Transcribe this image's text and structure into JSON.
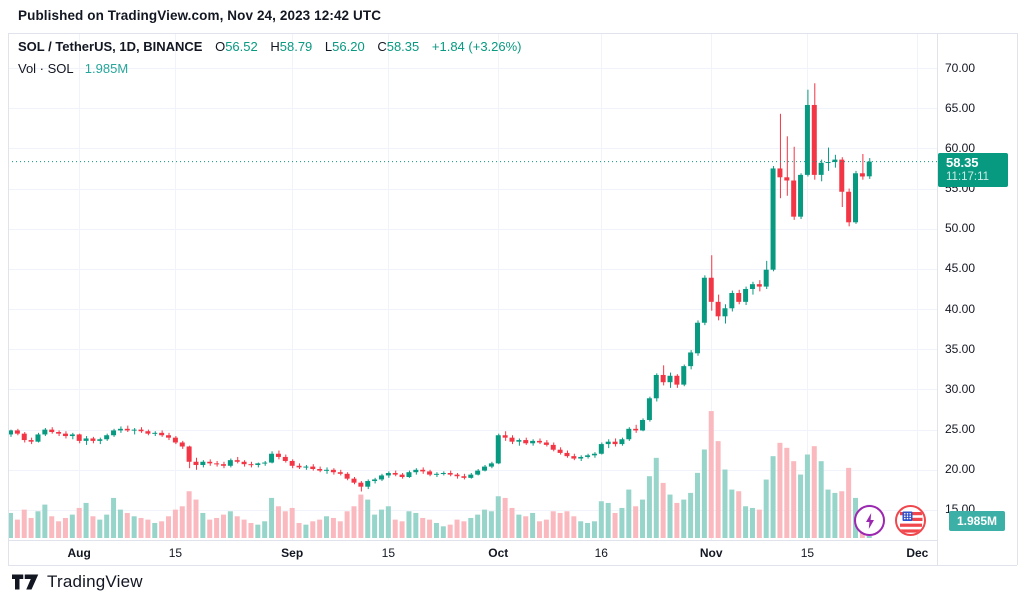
{
  "published": {
    "text": "Published on TradingView.com, Nov 24, 2023 12:42 UTC"
  },
  "legend": {
    "symbol": "SOL / TetherUS, 1D, BINANCE",
    "ohlc": [
      {
        "label": "O",
        "value": "56.52"
      },
      {
        "label": "H",
        "value": "58.79"
      },
      {
        "label": "L",
        "value": "56.20"
      },
      {
        "label": "C",
        "value": "58.35"
      }
    ],
    "change": "+1.84 (+3.26%)",
    "volume_label": "Vol · SOL",
    "volume_value": "1.985M"
  },
  "price_badge": {
    "price": "58.35",
    "countdown": "11:17:11"
  },
  "volume_badge": {
    "value": "1.985M"
  },
  "footer": {
    "logo_text": "TradingView"
  },
  "floating_icons": [
    {
      "name": "lightning-idea"
    },
    {
      "name": "us-flag"
    }
  ],
  "colors": {
    "up": "#089981",
    "down": "#f23645",
    "volume_up": "#97d4ca",
    "volume_down": "#fab9be",
    "grid": "#f0f3fa",
    "border": "#e0e3eb",
    "text": "#131722",
    "price_line": "#089981",
    "price_badge_bg": "#089981",
    "volume_badge_bg": "#3cb0a6",
    "lightning_purple": "#9c27b0",
    "flag_red": "#f0474d",
    "flag_blue": "#3050c8"
  },
  "chart_data": {
    "type": "candlestick",
    "title": "SOL / TetherUS, 1D, BINANCE",
    "interval": "1D",
    "exchange": "BINANCE",
    "legend_position": "top-left",
    "grid": true,
    "ylim": [
      12.5,
      71
    ],
    "y_ticks": [
      "70.00",
      "65.00",
      "60.00",
      "55.00",
      "50.00",
      "45.00",
      "40.00",
      "35.00",
      "30.00",
      "25.00",
      "20.00",
      "15.00"
    ],
    "x_ticks": [
      {
        "label": "Aug",
        "day_index": 10,
        "month": true
      },
      {
        "label": "15",
        "day_index": 24,
        "month": false
      },
      {
        "label": "Sep",
        "day_index": 41,
        "month": true
      },
      {
        "label": "15",
        "day_index": 55,
        "month": false
      },
      {
        "label": "Oct",
        "day_index": 71,
        "month": true
      },
      {
        "label": "16",
        "day_index": 86,
        "month": false
      },
      {
        "label": "Nov",
        "day_index": 102,
        "month": true
      },
      {
        "label": "15",
        "day_index": 116,
        "month": false
      },
      {
        "label": "Dec",
        "day_index": 132,
        "month": true
      }
    ],
    "last": {
      "price": 58.35,
      "countdown": "11:17:11",
      "volume": "1.985M"
    },
    "columns": [
      "date",
      "open",
      "high",
      "low",
      "close",
      "volume_millions"
    ],
    "candles": [
      [
        "Jul 22",
        24.4,
        25.0,
        24.1,
        24.9,
        1.5
      ],
      [
        "Jul 23",
        24.9,
        25.1,
        24.3,
        24.5,
        1.1
      ],
      [
        "Jul 24",
        24.5,
        24.7,
        23.4,
        23.7,
        1.7
      ],
      [
        "Jul 25",
        23.7,
        24.0,
        23.2,
        23.5,
        1.2
      ],
      [
        "Jul 26",
        23.5,
        24.6,
        23.4,
        24.4,
        1.6
      ],
      [
        "Jul 27",
        24.4,
        25.2,
        24.2,
        25.0,
        2.0
      ],
      [
        "Jul 28",
        25.0,
        25.3,
        24.5,
        24.7,
        1.3
      ],
      [
        "Jul 29",
        24.7,
        24.9,
        24.2,
        24.5,
        1.0
      ],
      [
        "Jul 30",
        24.5,
        24.8,
        23.9,
        24.2,
        1.2
      ],
      [
        "Jul 31",
        24.2,
        24.6,
        23.8,
        24.4,
        1.4
      ],
      [
        "Aug 1",
        24.4,
        24.5,
        23.3,
        23.6,
        1.8
      ],
      [
        "Aug 2",
        23.6,
        24.2,
        23.1,
        23.9,
        2.1
      ],
      [
        "Aug 3",
        23.9,
        24.1,
        23.3,
        23.6,
        1.3
      ],
      [
        "Aug 4",
        23.6,
        24.0,
        23.2,
        23.8,
        1.1
      ],
      [
        "Aug 5",
        23.8,
        24.5,
        23.6,
        24.3,
        1.4
      ],
      [
        "Aug 6",
        24.3,
        25.1,
        24.1,
        24.9,
        2.4
      ],
      [
        "Aug 7",
        24.9,
        25.4,
        24.6,
        25.1,
        1.7
      ],
      [
        "Aug 8",
        25.1,
        25.5,
        24.7,
        24.9,
        1.5
      ],
      [
        "Aug 9",
        24.9,
        25.2,
        24.4,
        25.0,
        1.3
      ],
      [
        "Aug 10",
        25.0,
        25.3,
        24.6,
        24.8,
        1.2
      ],
      [
        "Aug 11",
        24.8,
        25.0,
        24.3,
        24.5,
        1.1
      ],
      [
        "Aug 12",
        24.5,
        24.8,
        24.2,
        24.6,
        0.9
      ],
      [
        "Aug 13",
        24.6,
        24.9,
        24.1,
        24.3,
        1.0
      ],
      [
        "Aug 14",
        24.3,
        24.6,
        23.7,
        24.0,
        1.3
      ],
      [
        "Aug 15",
        24.0,
        24.2,
        23.2,
        23.4,
        1.7
      ],
      [
        "Aug 16",
        23.4,
        23.6,
        22.6,
        22.9,
        1.9
      ],
      [
        "Aug 17",
        22.9,
        23.0,
        20.2,
        21.0,
        2.8
      ],
      [
        "Aug 18",
        21.0,
        21.5,
        20.0,
        20.6,
        2.3
      ],
      [
        "Aug 19",
        20.6,
        21.2,
        20.3,
        21.0,
        1.5
      ],
      [
        "Aug 20",
        21.0,
        21.3,
        20.5,
        20.8,
        1.1
      ],
      [
        "Aug 21",
        20.8,
        21.1,
        20.4,
        20.7,
        1.2
      ],
      [
        "Aug 22",
        20.7,
        21.0,
        20.2,
        20.5,
        1.4
      ],
      [
        "Aug 23",
        20.5,
        21.4,
        20.3,
        21.2,
        1.6
      ],
      [
        "Aug 24",
        21.2,
        21.6,
        20.8,
        21.0,
        1.3
      ],
      [
        "Aug 25",
        21.0,
        21.2,
        20.4,
        20.7,
        1.1
      ],
      [
        "Aug 26",
        20.7,
        21.0,
        20.3,
        20.6,
        0.9
      ],
      [
        "Aug 27",
        20.6,
        20.9,
        20.3,
        20.8,
        0.8
      ],
      [
        "Aug 28",
        20.8,
        21.1,
        20.5,
        20.9,
        1.0
      ],
      [
        "Aug 29",
        20.9,
        22.3,
        20.8,
        22.0,
        2.4
      ],
      [
        "Aug 30",
        22.0,
        22.4,
        21.3,
        21.6,
        1.9
      ],
      [
        "Aug 31",
        21.6,
        21.9,
        20.9,
        21.1,
        1.6
      ],
      [
        "Sep 1",
        21.1,
        21.3,
        20.2,
        20.5,
        1.8
      ],
      [
        "Sep 2",
        20.5,
        20.8,
        20.1,
        20.3,
        0.9
      ],
      [
        "Sep 3",
        20.3,
        20.6,
        20.0,
        20.4,
        0.8
      ],
      [
        "Sep 4",
        20.4,
        20.7,
        19.9,
        20.1,
        1.0
      ],
      [
        "Sep 5",
        20.1,
        20.4,
        19.7,
        19.9,
        1.1
      ],
      [
        "Sep 6",
        19.9,
        20.3,
        19.5,
        20.0,
        1.3
      ],
      [
        "Sep 7",
        20.0,
        20.2,
        19.4,
        19.7,
        1.2
      ],
      [
        "Sep 8",
        19.7,
        20.0,
        19.3,
        19.5,
        1.0
      ],
      [
        "Sep 9",
        19.5,
        19.7,
        18.7,
        18.9,
        1.6
      ],
      [
        "Sep 10",
        18.9,
        19.1,
        18.2,
        18.4,
        1.9
      ],
      [
        "Sep 11",
        18.4,
        18.6,
        17.3,
        17.9,
        2.6
      ],
      [
        "Sep 12",
        17.9,
        18.8,
        17.6,
        18.6,
        2.3
      ],
      [
        "Sep 13",
        18.6,
        19.0,
        18.3,
        18.8,
        1.4
      ],
      [
        "Sep 14",
        18.8,
        19.5,
        18.6,
        19.3,
        1.7
      ],
      [
        "Sep 15",
        19.3,
        19.8,
        19.0,
        19.6,
        1.9
      ],
      [
        "Sep 16",
        19.6,
        19.9,
        19.2,
        19.4,
        1.1
      ],
      [
        "Sep 17",
        19.4,
        19.6,
        18.9,
        19.1,
        1.0
      ],
      [
        "Sep 18",
        19.1,
        19.9,
        19.0,
        19.7,
        1.6
      ],
      [
        "Sep 19",
        19.7,
        20.2,
        19.4,
        20.0,
        1.5
      ],
      [
        "Sep 20",
        20.0,
        20.3,
        19.5,
        19.8,
        1.2
      ],
      [
        "Sep 21",
        19.8,
        20.0,
        19.2,
        19.4,
        1.1
      ],
      [
        "Sep 22",
        19.4,
        19.7,
        19.1,
        19.5,
        0.9
      ],
      [
        "Sep 23",
        19.5,
        19.8,
        19.3,
        19.6,
        0.7
      ],
      [
        "Sep 24",
        19.6,
        19.9,
        19.2,
        19.4,
        0.8
      ],
      [
        "Sep 25",
        19.4,
        19.6,
        18.9,
        19.2,
        1.1
      ],
      [
        "Sep 26",
        19.2,
        19.5,
        18.8,
        19.0,
        1.0
      ],
      [
        "Sep 27",
        19.0,
        19.6,
        18.9,
        19.4,
        1.2
      ],
      [
        "Sep 28",
        19.4,
        20.1,
        19.3,
        19.9,
        1.4
      ],
      [
        "Sep 29",
        19.9,
        20.6,
        19.8,
        20.4,
        1.7
      ],
      [
        "Sep 30",
        20.4,
        21.0,
        20.2,
        20.8,
        1.6
      ],
      [
        "Oct 1",
        20.8,
        24.5,
        20.7,
        24.3,
        2.5
      ],
      [
        "Oct 2",
        24.3,
        24.8,
        23.6,
        24.0,
        2.4
      ],
      [
        "Oct 3",
        24.0,
        24.3,
        23.2,
        23.5,
        1.8
      ],
      [
        "Oct 4",
        23.5,
        23.9,
        23.0,
        23.7,
        1.4
      ],
      [
        "Oct 5",
        23.7,
        24.0,
        23.1,
        23.3,
        1.3
      ],
      [
        "Oct 6",
        23.3,
        23.8,
        23.0,
        23.6,
        1.5
      ],
      [
        "Oct 7",
        23.6,
        23.9,
        23.2,
        23.4,
        1.0
      ],
      [
        "Oct 8",
        23.4,
        23.7,
        22.9,
        23.1,
        1.1
      ],
      [
        "Oct 9",
        23.1,
        23.4,
        22.3,
        22.5,
        1.6
      ],
      [
        "Oct 10",
        22.5,
        22.8,
        21.9,
        22.1,
        1.5
      ],
      [
        "Oct 11",
        22.1,
        22.4,
        21.5,
        21.7,
        1.6
      ],
      [
        "Oct 12",
        21.7,
        22.0,
        21.2,
        21.4,
        1.3
      ],
      [
        "Oct 13",
        21.4,
        21.8,
        21.1,
        21.6,
        1.0
      ],
      [
        "Oct 14",
        21.6,
        22.0,
        21.4,
        21.8,
        0.9
      ],
      [
        "Oct 15",
        21.8,
        22.2,
        21.5,
        22.0,
        1.0
      ],
      [
        "Oct 16",
        22.0,
        23.4,
        21.9,
        23.2,
        2.2
      ],
      [
        "Oct 17",
        23.2,
        23.8,
        22.7,
        23.5,
        2.1
      ],
      [
        "Oct 18",
        23.5,
        23.9,
        22.9,
        23.2,
        1.5
      ],
      [
        "Oct 19",
        23.2,
        24.0,
        23.0,
        23.8,
        1.8
      ],
      [
        "Oct 20",
        23.8,
        25.3,
        23.6,
        25.1,
        2.9
      ],
      [
        "Oct 21",
        25.1,
        25.6,
        24.6,
        24.9,
        1.9
      ],
      [
        "Oct 22",
        24.9,
        26.4,
        24.8,
        26.2,
        2.3
      ],
      [
        "Oct 23",
        26.2,
        29.1,
        26.0,
        28.9,
        3.7
      ],
      [
        "Oct 24",
        28.9,
        32.0,
        28.5,
        31.8,
        4.8
      ],
      [
        "Oct 25",
        31.8,
        33.0,
        30.5,
        30.9,
        3.3
      ],
      [
        "Oct 26",
        30.9,
        32.1,
        30.2,
        31.7,
        2.6
      ],
      [
        "Oct 27",
        31.7,
        31.9,
        30.2,
        30.6,
        2.1
      ],
      [
        "Oct 28",
        30.6,
        33.1,
        30.4,
        32.9,
        2.3
      ],
      [
        "Oct 29",
        32.9,
        34.9,
        32.5,
        34.6,
        2.7
      ],
      [
        "Oct 30",
        34.5,
        38.6,
        34.2,
        38.3,
        3.9
      ],
      [
        "Oct 31",
        38.3,
        44.2,
        38.0,
        43.9,
        5.3
      ],
      [
        "Nov 1",
        43.9,
        46.7,
        39.8,
        40.9,
        7.6
      ],
      [
        "Nov 2",
        40.9,
        41.8,
        38.6,
        39.1,
        5.8
      ],
      [
        "Nov 3",
        39.1,
        40.6,
        38.2,
        40.1,
        4.1
      ],
      [
        "Nov 4",
        40.1,
        42.3,
        39.7,
        42.0,
        2.9
      ],
      [
        "Nov 5",
        42.0,
        42.4,
        40.6,
        40.9,
        2.8
      ],
      [
        "Nov 6",
        40.9,
        42.8,
        40.5,
        42.5,
        1.9
      ],
      [
        "Nov 7",
        42.5,
        43.4,
        41.8,
        43.1,
        1.8
      ],
      [
        "Nov 8",
        43.1,
        43.6,
        42.2,
        42.8,
        1.7
      ],
      [
        "Nov 9",
        42.8,
        46.0,
        42.5,
        44.9,
        3.5
      ],
      [
        "Nov 10",
        44.9,
        57.8,
        44.7,
        57.5,
        4.9
      ],
      [
        "Nov 11",
        57.5,
        64.3,
        53.8,
        56.4,
        5.7
      ],
      [
        "Nov 12",
        56.4,
        61.5,
        54.1,
        56.0,
        5.4
      ],
      [
        "Nov 13",
        56.0,
        60.2,
        51.1,
        51.5,
        4.6
      ],
      [
        "Nov 14",
        51.5,
        56.9,
        51.2,
        56.7,
        3.8
      ],
      [
        "Nov 15",
        56.7,
        67.3,
        56.5,
        65.4,
        5.0
      ],
      [
        "Nov 16",
        65.4,
        68.1,
        56.1,
        56.7,
        5.5
      ],
      [
        "Nov 17",
        56.7,
        58.6,
        55.9,
        58.2,
        4.6
      ],
      [
        "Nov 18",
        58.2,
        60.1,
        57.2,
        58.3,
        2.9
      ],
      [
        "Nov 19",
        58.3,
        59.2,
        57.6,
        58.6,
        2.7
      ],
      [
        "Nov 20",
        58.6,
        58.9,
        52.7,
        54.6,
        2.8
      ],
      [
        "Nov 21",
        54.6,
        55.0,
        50.3,
        50.8,
        4.2
      ],
      [
        "Nov 22",
        50.8,
        57.2,
        50.6,
        56.9,
        2.4
      ],
      [
        "Nov 23",
        56.9,
        59.3,
        56.1,
        56.5,
        1.6
      ],
      [
        "Nov 24",
        56.52,
        58.79,
        56.2,
        58.35,
        1.985
      ]
    ]
  }
}
